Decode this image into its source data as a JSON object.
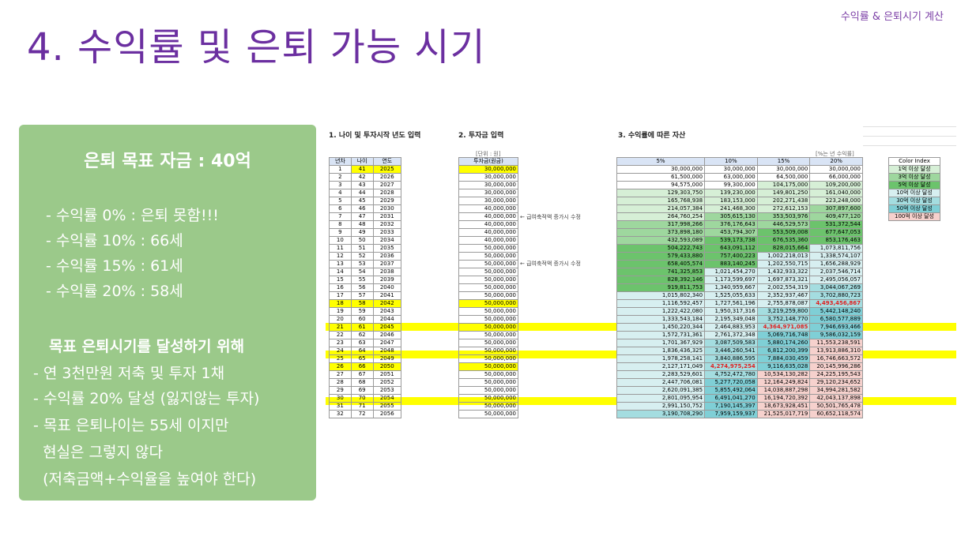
{
  "corner_label": "수익률 & 은퇴시기 계산",
  "title": "4. 수익률 및 은퇴 가능 시기",
  "panel": {
    "goal": "은퇴 목표 자금 : 40억",
    "rates": [
      "- 수익률   0% : 은퇴 못함!!!",
      "- 수익률 10% : 66세",
      "- 수익률 15% : 61세",
      "- 수익률 20% : 58세"
    ],
    "subtitle": "목표 은퇴시기를 달성하기 위해",
    "points": [
      "- 연 3천만원 저축 및 투자 1채",
      "- 수익률 20% 달성 (잃지않는 투자)",
      "- 목표 은퇴나이는 55세 이지만",
      "  현실은 그렇지 않다",
      "  (저축금액+수익율을 높여야 한다)"
    ]
  },
  "sheet": {
    "section1": "1. 나이 및 투자시작 년도 입력",
    "section2": "2. 투자금 입력",
    "section3": "3. 수익률에 따른 자산",
    "unit_left": "[단위 : 원]",
    "unit_right": "[%는 년 수익률]",
    "headers_age": [
      "년차",
      "나이",
      "연도"
    ],
    "header_invest": "투자금(원금)",
    "headers_rates": [
      "5%",
      "10%",
      "15%",
      "20%"
    ],
    "note": "← 급여축적액 증가시 수정",
    "color_index_title": "Color Index",
    "color_index": [
      {
        "label": "1억 이상 달성",
        "color": "#d6efd6"
      },
      {
        "label": "3억 이상 달성",
        "color": "#9ed79e"
      },
      {
        "label": "5억 이상 달성",
        "color": "#6cc36c"
      },
      {
        "label": "10억 이상 달성",
        "color": "#d7eff0"
      },
      {
        "label": "30억 이상 달성",
        "color": "#a4dde0"
      },
      {
        "label": "50억 이상 달성",
        "color": "#7fcfd6"
      },
      {
        "label": "100억 이상 달성",
        "color": "#f6d1cd"
      }
    ],
    "rows": [
      {
        "n": "1",
        "age": "41",
        "year": "2025",
        "inv": "30,000,000",
        "v": [
          "30,000,000",
          "30,000,000",
          "30,000,000",
          "30,000,000"
        ]
      },
      {
        "n": "2",
        "age": "42",
        "year": "2026",
        "inv": "30,000,000",
        "v": [
          "61,500,000",
          "63,000,000",
          "64,500,000",
          "66,000,000"
        ]
      },
      {
        "n": "3",
        "age": "43",
        "year": "2027",
        "inv": "30,000,000",
        "v": [
          "94,575,000",
          "99,300,000",
          "104,175,000",
          "109,200,000"
        ]
      },
      {
        "n": "4",
        "age": "44",
        "year": "2028",
        "inv": "30,000,000",
        "v": [
          "129,303,750",
          "139,230,000",
          "149,801,250",
          "161,040,000"
        ]
      },
      {
        "n": "5",
        "age": "45",
        "year": "2029",
        "inv": "30,000,000",
        "v": [
          "165,768,938",
          "183,153,000",
          "202,271,438",
          "223,248,000"
        ]
      },
      {
        "n": "6",
        "age": "46",
        "year": "2030",
        "inv": "40,000,000",
        "v": [
          "214,057,384",
          "241,468,300",
          "272,612,153",
          "307,897,600"
        ]
      },
      {
        "n": "7",
        "age": "47",
        "year": "2031",
        "inv": "40,000,000",
        "v": [
          "264,760,254",
          "305,615,130",
          "353,503,976",
          "409,477,120"
        ]
      },
      {
        "n": "8",
        "age": "48",
        "year": "2032",
        "inv": "40,000,000",
        "v": [
          "317,998,266",
          "376,176,643",
          "446,529,573",
          "531,372,544"
        ]
      },
      {
        "n": "9",
        "age": "49",
        "year": "2033",
        "inv": "40,000,000",
        "v": [
          "373,898,180",
          "453,794,307",
          "553,509,008",
          "677,647,053"
        ]
      },
      {
        "n": "10",
        "age": "50",
        "year": "2034",
        "inv": "40,000,000",
        "v": [
          "432,593,089",
          "539,173,738",
          "676,535,360",
          "853,176,463"
        ]
      },
      {
        "n": "11",
        "age": "51",
        "year": "2035",
        "inv": "50,000,000",
        "v": [
          "504,222,743",
          "643,091,112",
          "828,015,664",
          "1,073,811,756"
        ]
      },
      {
        "n": "12",
        "age": "52",
        "year": "2036",
        "inv": "50,000,000",
        "v": [
          "579,433,880",
          "757,400,223",
          "1,002,218,013",
          "1,338,574,107"
        ]
      },
      {
        "n": "13",
        "age": "53",
        "year": "2037",
        "inv": "50,000,000",
        "v": [
          "658,405,574",
          "883,140,245",
          "1,202,550,715",
          "1,656,288,929"
        ]
      },
      {
        "n": "14",
        "age": "54",
        "year": "2038",
        "inv": "50,000,000",
        "v": [
          "741,325,853",
          "1,021,454,270",
          "1,432,933,322",
          "2,037,546,714"
        ]
      },
      {
        "n": "15",
        "age": "55",
        "year": "2039",
        "inv": "50,000,000",
        "v": [
          "828,392,146",
          "1,173,599,697",
          "1,697,873,321",
          "2,495,056,057"
        ]
      },
      {
        "n": "16",
        "age": "56",
        "year": "2040",
        "inv": "50,000,000",
        "v": [
          "919,811,753",
          "1,340,959,667",
          "2,002,554,319",
          "3,044,067,269"
        ]
      },
      {
        "n": "17",
        "age": "57",
        "year": "2041",
        "inv": "50,000,000",
        "v": [
          "1,015,802,340",
          "1,525,055,633",
          "2,352,937,467",
          "3,702,880,723"
        ]
      },
      {
        "n": "18",
        "age": "58",
        "year": "2042",
        "inv": "50,000,000",
        "v": [
          "1,116,592,457",
          "1,727,561,196",
          "2,755,878,087",
          "4,493,456,867"
        ]
      },
      {
        "n": "19",
        "age": "59",
        "year": "2043",
        "inv": "50,000,000",
        "v": [
          "1,222,422,080",
          "1,950,317,316",
          "3,219,259,800",
          "5,442,148,240"
        ]
      },
      {
        "n": "20",
        "age": "60",
        "year": "2044",
        "inv": "50,000,000",
        "v": [
          "1,333,543,184",
          "2,195,349,048",
          "3,752,148,770",
          "6,580,577,889"
        ]
      },
      {
        "n": "21",
        "age": "61",
        "year": "2045",
        "inv": "50,000,000",
        "v": [
          "1,450,220,344",
          "2,464,883,953",
          "4,364,971,085",
          "7,946,693,466"
        ]
      },
      {
        "n": "22",
        "age": "62",
        "year": "2046",
        "inv": "50,000,000",
        "v": [
          "1,572,731,361",
          "2,761,372,348",
          "5,069,716,748",
          "9,586,032,159"
        ]
      },
      {
        "n": "23",
        "age": "63",
        "year": "2047",
        "inv": "50,000,000",
        "v": [
          "1,701,367,929",
          "3,087,509,583",
          "5,880,174,260",
          "11,553,238,591"
        ]
      },
      {
        "n": "24",
        "age": "64",
        "year": "2048",
        "inv": "50,000,000",
        "v": [
          "1,836,436,325",
          "3,446,260,541",
          "6,812,200,399",
          "13,913,886,310"
        ]
      },
      {
        "n": "25",
        "age": "65",
        "year": "2049",
        "inv": "50,000,000",
        "v": [
          "1,978,258,141",
          "3,840,886,595",
          "7,884,030,459",
          "16,746,663,572"
        ]
      },
      {
        "n": "26",
        "age": "66",
        "year": "2050",
        "inv": "50,000,000",
        "v": [
          "2,127,171,049",
          "4,274,975,254",
          "9,116,635,028",
          "20,145,996,286"
        ]
      },
      {
        "n": "27",
        "age": "67",
        "year": "2051",
        "inv": "50,000,000",
        "v": [
          "2,283,529,601",
          "4,752,472,780",
          "10,534,130,282",
          "24,225,195,543"
        ]
      },
      {
        "n": "28",
        "age": "68",
        "year": "2052",
        "inv": "50,000,000",
        "v": [
          "2,447,706,081",
          "5,277,720,058",
          "12,164,249,824",
          "29,120,234,652"
        ]
      },
      {
        "n": "29",
        "age": "69",
        "year": "2053",
        "inv": "50,000,000",
        "v": [
          "2,620,091,385",
          "5,855,492,064",
          "14,038,887,298",
          "34,994,281,582"
        ]
      },
      {
        "n": "30",
        "age": "70",
        "year": "2054",
        "inv": "50,000,000",
        "v": [
          "2,801,095,954",
          "6,491,041,270",
          "16,194,720,392",
          "42,043,137,898"
        ]
      },
      {
        "n": "31",
        "age": "71",
        "year": "2055",
        "inv": "50,000,000",
        "v": [
          "2,991,150,752",
          "7,190,145,397",
          "18,673,928,451",
          "50,501,765,478"
        ]
      },
      {
        "n": "32",
        "age": "72",
        "year": "2056",
        "inv": "50,000,000",
        "v": [
          "3,190,708,290",
          "7,959,159,937",
          "21,525,017,719",
          "60,652,118,574"
        ]
      }
    ]
  }
}
